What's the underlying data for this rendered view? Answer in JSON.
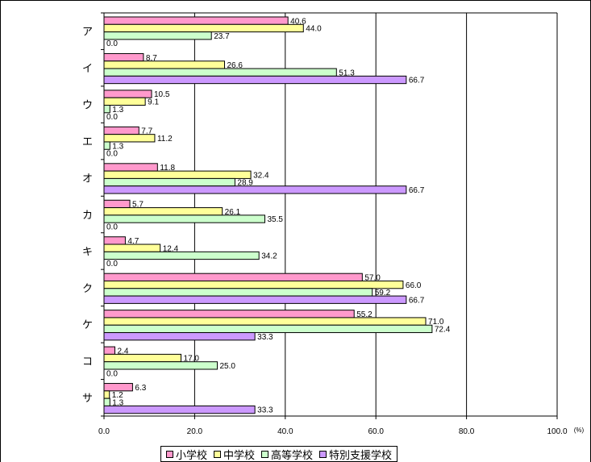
{
  "chart_data": {
    "type": "bar",
    "orientation": "horizontal",
    "categories": [
      "ア",
      "イ",
      "ウ",
      "エ",
      "オ",
      "カ",
      "キ",
      "ク",
      "ケ",
      "コ",
      "サ"
    ],
    "series": [
      {
        "name": "小学校",
        "color": "#ff99cc",
        "values": [
          40.6,
          8.7,
          10.5,
          7.7,
          11.8,
          5.7,
          4.7,
          57.0,
          55.2,
          2.4,
          6.3
        ]
      },
      {
        "name": "中学校",
        "color": "#ffff99",
        "values": [
          44.0,
          26.6,
          9.1,
          11.2,
          32.4,
          26.1,
          12.4,
          66.0,
          71.0,
          17.0,
          1.2
        ]
      },
      {
        "name": "高等学校",
        "color": "#ccffcc",
        "values": [
          23.7,
          51.3,
          1.3,
          1.3,
          28.9,
          35.5,
          34.2,
          59.2,
          72.4,
          25.0,
          1.3
        ]
      },
      {
        "name": "特別支援学校",
        "color": "#cc99ff",
        "values": [
          0.0,
          66.7,
          0.0,
          0.0,
          66.7,
          0.0,
          0.0,
          66.7,
          33.3,
          0.0,
          33.3
        ]
      }
    ],
    "x_ticks": [
      "0.0",
      "20.0",
      "40.0",
      "60.0",
      "80.0",
      "100.0"
    ],
    "xlim": [
      0,
      100
    ],
    "unit_label": "(%)",
    "value_labels": [
      [
        "40.6",
        "8.7",
        "10.5",
        "7.7",
        "11.8",
        "5.7",
        "4.7",
        "57.0",
        "55.2",
        "2.4",
        "6.3"
      ],
      [
        "44.0",
        "26.6",
        "9.1",
        "11.2",
        "32.4",
        "26.1",
        "12.4",
        "66.0",
        "71.0",
        "17.0",
        "1.2"
      ],
      [
        "23.7",
        "51.3",
        "1.3",
        "1.3",
        "28.9",
        "35.5",
        "34.2",
        "59.2",
        "72.4",
        "25.0",
        "1.3"
      ],
      [
        "0.0",
        "66.7",
        "0.0",
        "0.0",
        "66.7",
        "0.0",
        "0.0",
        "66.7",
        "33.3",
        "0.0",
        "33.3"
      ]
    ],
    "grid": true,
    "legend_position": "bottom"
  }
}
